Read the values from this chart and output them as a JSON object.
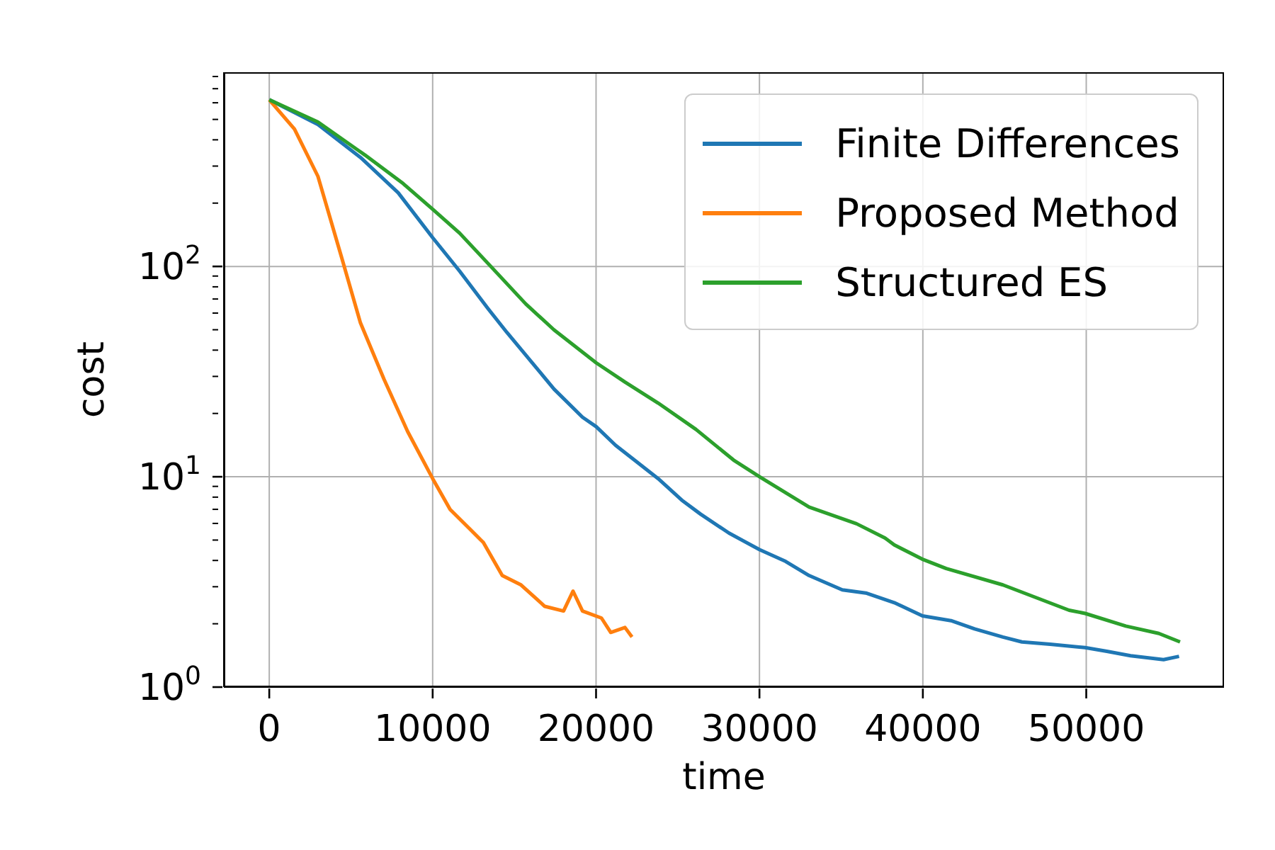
{
  "chart_data": {
    "type": "line",
    "xlabel": "time",
    "ylabel": "cost",
    "log": "y",
    "grid": true,
    "legend": "top right",
    "marker": "none",
    "line_style": "solid",
    "xlim": [
      -2780,
      58430
    ],
    "xticks": [
      0,
      10000,
      20000,
      30000,
      40000,
      50000
    ],
    "ylim": [
      1,
      838
    ],
    "yticks": [
      {
        "value": 1,
        "label": "10$^{0}$"
      },
      {
        "value": 2,
        "label": null
      },
      {
        "value": 3,
        "label": null
      },
      {
        "value": 4,
        "label": null
      },
      {
        "value": 5,
        "label": null
      },
      {
        "value": 6,
        "label": null
      },
      {
        "value": 7,
        "label": null
      },
      {
        "value": 8,
        "label": null
      },
      {
        "value": 9,
        "label": null
      },
      {
        "value": 10,
        "label": "10$^{1}$"
      },
      {
        "value": 20,
        "label": null
      },
      {
        "value": 30,
        "label": null
      },
      {
        "value": 40,
        "label": null
      },
      {
        "value": 50,
        "label": null
      },
      {
        "value": 60,
        "label": null
      },
      {
        "value": 70,
        "label": null
      },
      {
        "value": 80,
        "label": null
      },
      {
        "value": 90,
        "label": null
      },
      {
        "value": 100,
        "label": "10$^{2}$"
      },
      {
        "value": 200,
        "label": null
      },
      {
        "value": 300,
        "label": null
      },
      {
        "value": 400,
        "label": null
      },
      {
        "value": 500,
        "label": null
      },
      {
        "value": 600,
        "label": null
      },
      {
        "value": 700,
        "label": null
      },
      {
        "value": 800,
        "label": null
      }
    ],
    "series": [
      {
        "name": "Finite Differences",
        "color": "#1f77b4",
        "x": [
          0,
          2980,
          5580,
          7890,
          10000,
          11650,
          13390,
          14540,
          15990,
          17430,
          19170,
          20010,
          21200,
          22350,
          23800,
          25240,
          26400,
          28130,
          30010,
          31600,
          33040,
          35070,
          36510,
          38250,
          39980,
          41720,
          43170,
          44900,
          46060,
          47790,
          49930,
          51260,
          52710,
          54730,
          55680
        ],
        "values": [
          620,
          473,
          330,
          224,
          137,
          95,
          63,
          48.6,
          35.6,
          26.1,
          19.2,
          17.3,
          14.1,
          12.0,
          9.8,
          7.75,
          6.64,
          5.4,
          4.5,
          3.96,
          3.39,
          2.9,
          2.8,
          2.52,
          2.18,
          2.07,
          1.89,
          1.73,
          1.64,
          1.6,
          1.54,
          1.48,
          1.41,
          1.35,
          1.4
        ]
      },
      {
        "name": "Proposed Method",
        "color": "#ff7f0e",
        "x": [
          0,
          1540,
          2980,
          4420,
          5580,
          7030,
          8470,
          10000,
          11070,
          12230,
          13100,
          14260,
          15410,
          16860,
          18010,
          18590,
          19170,
          20330,
          20900,
          21770,
          22200
        ],
        "values": [
          620,
          450,
          268,
          111,
          53.9,
          29,
          16.4,
          9.8,
          6.99,
          5.69,
          4.87,
          3.39,
          3.06,
          2.42,
          2.3,
          2.86,
          2.3,
          2.13,
          1.82,
          1.92,
          1.73
        ]
      },
      {
        "name": "Structured ES",
        "color": "#2ca02c",
        "x": [
          0,
          2980,
          5870,
          8190,
          10000,
          11650,
          13680,
          15700,
          17430,
          20010,
          21770,
          23800,
          26110,
          28420,
          30010,
          33040,
          35940,
          37680,
          38250,
          39960,
          41430,
          44900,
          48950,
          49930,
          52420,
          54440,
          55740
        ],
        "values": [
          620,
          486,
          338,
          248,
          187,
          144,
          97.7,
          66.3,
          49.9,
          34.8,
          28.2,
          22.4,
          16.8,
          12.0,
          10.0,
          7.17,
          5.98,
          5.12,
          4.74,
          4.06,
          3.66,
          3.06,
          2.32,
          2.24,
          1.95,
          1.8,
          1.64
        ]
      }
    ]
  }
}
